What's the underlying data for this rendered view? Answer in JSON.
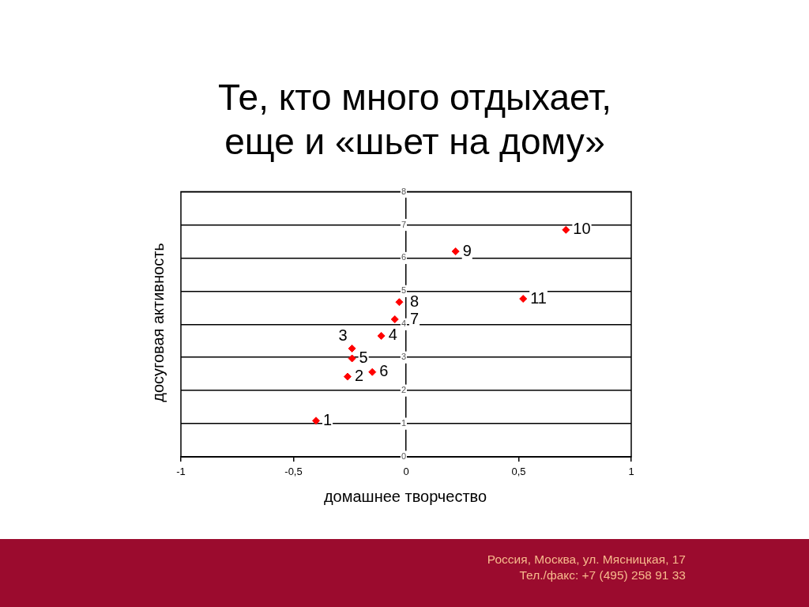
{
  "chart_data": {
    "type": "scatter",
    "title": "Те, кто много отдыхает, еще и «шьет на дому»",
    "xlabel": "домашнее творчество",
    "ylabel": "досуговая активность",
    "x": [
      -0.4,
      -0.26,
      -0.24,
      -0.11,
      -0.24,
      -0.15,
      -0.05,
      -0.03,
      0.22,
      0.71,
      0.52
    ],
    "values": [
      1.09,
      2.42,
      3.27,
      3.65,
      2.97,
      2.56,
      4.15,
      4.67,
      6.2,
      6.85,
      4.77
    ],
    "color": "#ff0000",
    "marker": "diamond",
    "xlim": [
      -1,
      1
    ],
    "xticks": [
      -1,
      {
        "value": -0.5,
        "label": "-0,5"
      },
      0,
      {
        "value": 0.5,
        "label": "0,5"
      },
      1
    ],
    "ylim": [
      0,
      8
    ],
    "yticks": [
      0,
      1,
      2,
      3,
      4,
      5,
      6,
      7,
      8
    ],
    "grid": "y",
    "annotations": [
      {
        "text": "1",
        "x": -0.4,
        "y": 1.09
      },
      {
        "text": "2",
        "x": -0.26,
        "y": 2.42
      },
      {
        "text": "3",
        "x": -0.24,
        "y": 3.27
      },
      {
        "text": "4",
        "x": -0.11,
        "y": 3.65
      },
      {
        "text": "5",
        "x": -0.24,
        "y": 2.97
      },
      {
        "text": "6",
        "x": -0.15,
        "y": 2.56
      },
      {
        "text": "7",
        "x": -0.05,
        "y": 4.15
      },
      {
        "text": "8",
        "x": -0.03,
        "y": 4.67
      },
      {
        "text": "9",
        "x": 0.22,
        "y": 6.2
      },
      {
        "text": "10",
        "x": 0.71,
        "y": 6.85
      },
      {
        "text": "11",
        "x": 0.52,
        "y": 4.77
      },
      "Россия, Москва, ул. Мясницкая, 17",
      "Тел./факс: +7 (495) 258 91 33"
    ]
  }
}
